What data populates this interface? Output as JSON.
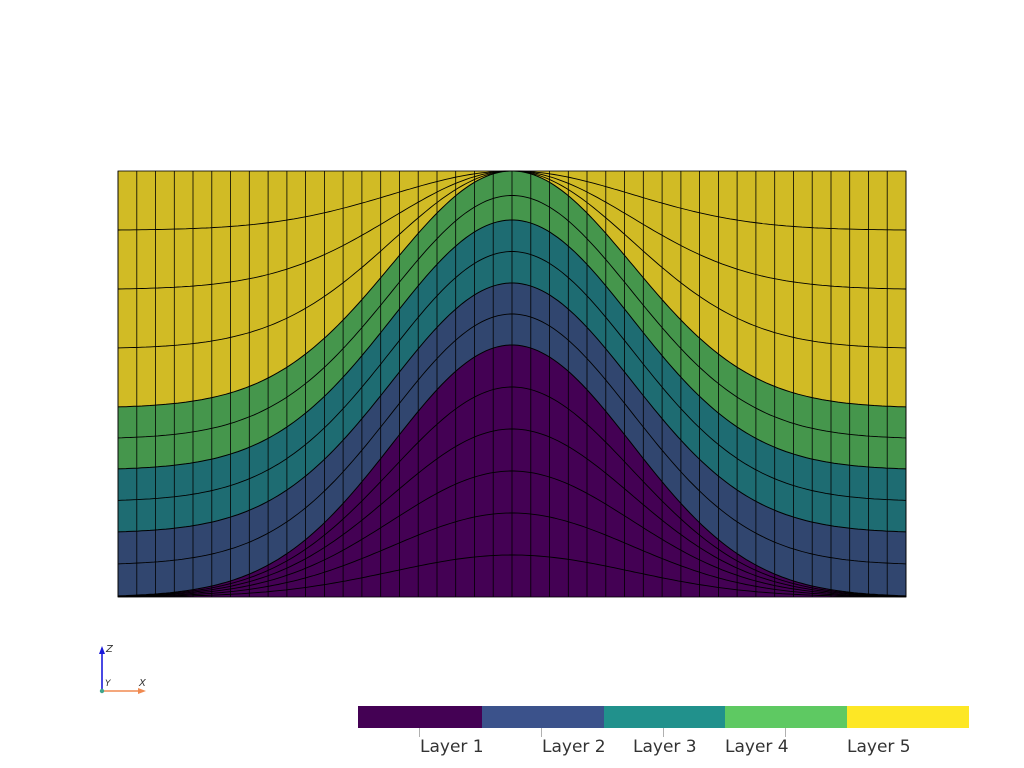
{
  "mesh": {
    "layer_colors": [
      "#440154",
      "#3b528b",
      "#21918c",
      "#5ec962",
      "#fde725"
    ],
    "render_colors": [
      "#440154",
      "#31466f",
      "#1e6c72",
      "#45964c",
      "#d1bb25"
    ],
    "grid_line_color": "#000000",
    "columns": 42,
    "shape": "bell"
  },
  "colorbar": {
    "labels": [
      "Layer 1",
      "Layer 2",
      "Layer 3",
      "Layer 4",
      "Layer 5"
    ],
    "colors": [
      "#440154",
      "#3b528b",
      "#21918c",
      "#5ec962",
      "#fde725"
    ]
  },
  "axes": {
    "z_label": "Z",
    "y_label": "Y",
    "x_label": "X",
    "z_color": "#1a1adc",
    "x_color": "#f08a50"
  }
}
